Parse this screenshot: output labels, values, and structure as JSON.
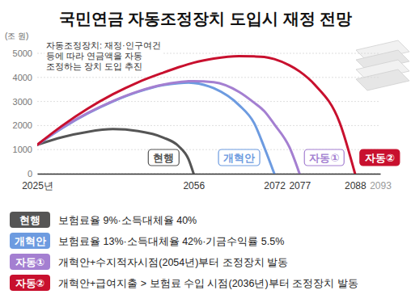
{
  "chart_data": {
    "type": "line",
    "title": "국민연금 자동조정장치 도입시 재정 전망",
    "y_label": "(조 원)",
    "annotation": [
      "자동조정장치: 재정·인구여건",
      "등에 따라 연금액을 자동",
      "조정하는 장치 도입 추진"
    ],
    "x": [
      2025,
      2030,
      2035,
      2040,
      2045,
      2050,
      2053,
      2055,
      2056,
      2060,
      2065,
      2068,
      2070,
      2072,
      2075,
      2077,
      2080,
      2085,
      2088
    ],
    "xlim": [
      2025,
      2093
    ],
    "xticks": [
      {
        "value": 2025,
        "label": "2025년"
      },
      2056,
      2072,
      2077,
      2088,
      2093
    ],
    "ylim": [
      0,
      5000
    ],
    "yticks": [
      0,
      1000,
      2000,
      3000,
      4000,
      5000
    ],
    "grid": true,
    "legend": "bottom",
    "series": [
      {
        "name": "현행",
        "color": "#555555",
        "description": "보험료율 9%·소득대체율 40%",
        "values": [
          1200,
          1520,
          1740,
          1850,
          1770,
          1500,
          1150,
          600,
          0,
          null,
          null,
          null,
          null,
          null,
          null,
          null,
          null,
          null,
          null
        ]
      },
      {
        "name": "개혁안",
        "color": "#6d9be0",
        "description": "보험료율 13%·소득대체율 42%·기금수익률 5.5%",
        "values": [
          1200,
          1900,
          2500,
          3000,
          3400,
          3680,
          3760,
          3780,
          3770,
          3550,
          2850,
          2100,
          1100,
          0,
          null,
          null,
          null,
          null,
          null
        ]
      },
      {
        "name": "자동①",
        "color": "#a47fd1",
        "description": "개혁안+수지적자시점(2054년)부터 조정장치 발동",
        "values": [
          1200,
          1920,
          2520,
          3020,
          3420,
          3700,
          3800,
          3840,
          3845,
          3800,
          3400,
          2950,
          2600,
          2050,
          1100,
          0,
          null,
          null,
          null
        ]
      },
      {
        "name": "자동②",
        "color": "#c8102e",
        "description": "개혁안+급여지출 > 보험료 수입 시점(2036년)부터 조정장치 발동",
        "values": [
          1200,
          2000,
          2700,
          3300,
          3800,
          4200,
          4420,
          4550,
          4610,
          4780,
          4880,
          4870,
          4850,
          4760,
          4500,
          4250,
          3700,
          2100,
          0
        ]
      }
    ]
  }
}
